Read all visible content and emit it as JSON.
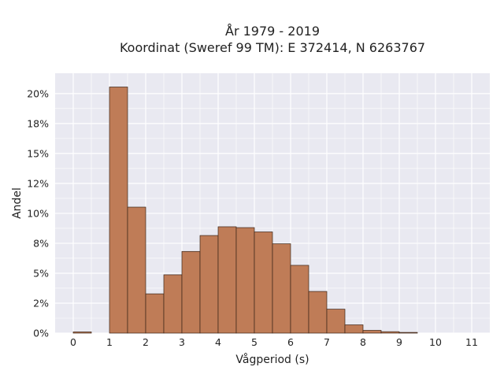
{
  "chart_data": {
    "type": "bar",
    "title": "År 1979 - 2019",
    "subtitle": "Koordinat (Sweref 99 TM): E 372414, N 6263767",
    "xlabel": "Vågperiod (s)",
    "ylabel": "Andel",
    "bin_width": 0.5,
    "bins": [
      {
        "start": 0.0,
        "value": 0.001
      },
      {
        "start": 0.5,
        "value": 0.0
      },
      {
        "start": 1.0,
        "value": 0.2055
      },
      {
        "start": 1.5,
        "value": 0.1052
      },
      {
        "start": 2.0,
        "value": 0.0328
      },
      {
        "start": 2.5,
        "value": 0.0487
      },
      {
        "start": 3.0,
        "value": 0.0682
      },
      {
        "start": 3.5,
        "value": 0.0815
      },
      {
        "start": 4.0,
        "value": 0.0888
      },
      {
        "start": 4.5,
        "value": 0.0881
      },
      {
        "start": 5.0,
        "value": 0.0845
      },
      {
        "start": 5.5,
        "value": 0.0746
      },
      {
        "start": 6.0,
        "value": 0.0566
      },
      {
        "start": 6.5,
        "value": 0.0348
      },
      {
        "start": 7.0,
        "value": 0.02
      },
      {
        "start": 7.5,
        "value": 0.0069
      },
      {
        "start": 8.0,
        "value": 0.0023
      },
      {
        "start": 8.5,
        "value": 0.0012
      },
      {
        "start": 9.0,
        "value": 0.0006
      }
    ],
    "xlim": [
      -0.5,
      11.5
    ],
    "ylim": [
      0,
      0.217
    ],
    "xticks": [
      0,
      1,
      2,
      3,
      4,
      5,
      6,
      7,
      8,
      9,
      10,
      11
    ],
    "xtick_labels": [
      "0",
      "1",
      "2",
      "3",
      "4",
      "5",
      "6",
      "7",
      "8",
      "9",
      "10",
      "11"
    ],
    "yticks": [
      0,
      0.025,
      0.05,
      0.075,
      0.1,
      0.125,
      0.15,
      0.175,
      0.2
    ],
    "ytick_labels": [
      "0%",
      "2%",
      "5%",
      "8%",
      "10%",
      "12%",
      "15%",
      "18%",
      "20%"
    ],
    "grid": true,
    "colors": {
      "bar_fill": "#bf7c57",
      "bar_stroke": "#3a2418",
      "plot_background": "#e9e9f1",
      "grid": "#ffffff"
    }
  }
}
